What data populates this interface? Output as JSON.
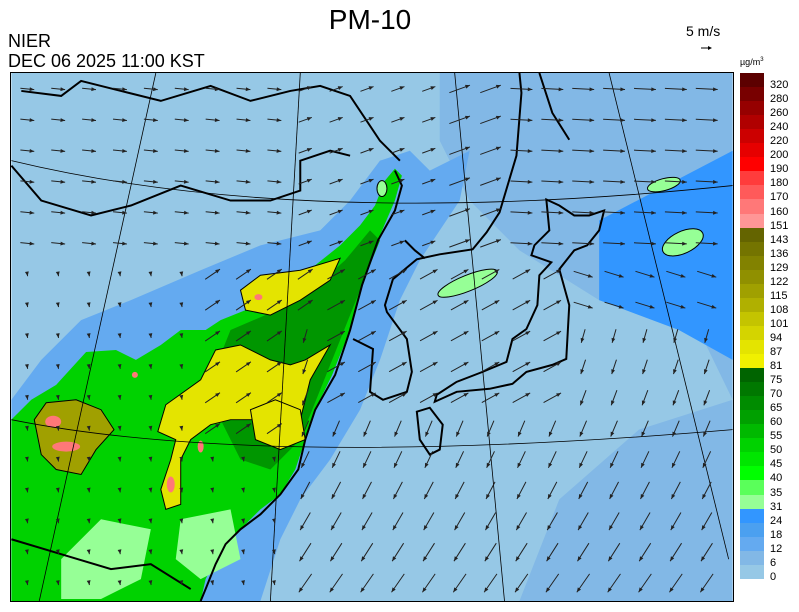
{
  "header": {
    "title": "PM-10",
    "organization": "NIER",
    "datetime": "DEC 06 2025 11:00 KST",
    "wind_scale_label": "5 m/s",
    "unit": "µg/m",
    "unit_exponent": "3"
  },
  "legend": {
    "labels": [
      "320",
      "280",
      "260",
      "240",
      "220",
      "200",
      "190",
      "180",
      "170",
      "160",
      "151",
      "143",
      "136",
      "129",
      "122",
      "115",
      "108",
      "101",
      "94",
      "87",
      "81",
      "75",
      "70",
      "65",
      "60",
      "55",
      "50",
      "45",
      "40",
      "35",
      "31",
      "24",
      "18",
      "12",
      "6",
      "0"
    ],
    "colors": [
      "#5c0000",
      "#780000",
      "#960000",
      "#b00000",
      "#cc0000",
      "#e60000",
      "#ff0000",
      "#ff3c3c",
      "#ff5a5a",
      "#ff7878",
      "#ff9696",
      "#646400",
      "#747400",
      "#828200",
      "#909000",
      "#a0a000",
      "#b0b000",
      "#c4c400",
      "#d4d400",
      "#e4e400",
      "#f0f000",
      "#006400",
      "#007800",
      "#008c00",
      "#00a000",
      "#00b900",
      "#00d200",
      "#00e600",
      "#00ff00",
      "#5aff5a",
      "#96ff96",
      "#3296ff",
      "#4ba0f0",
      "#64aaf0",
      "#82b8e6",
      "#96c8e6"
    ]
  },
  "map_colors": {
    "ocean": "#96c8e6",
    "sea_mid": "#82b8e6",
    "coastal": "#64aaf0",
    "coastal_high": "#3296ff",
    "land_green": "#00d200",
    "land_dark": "#009600",
    "land_light": "#96ff96",
    "yellow": "#e4e400",
    "olive": "#a0a000",
    "red": "#ff7878"
  }
}
